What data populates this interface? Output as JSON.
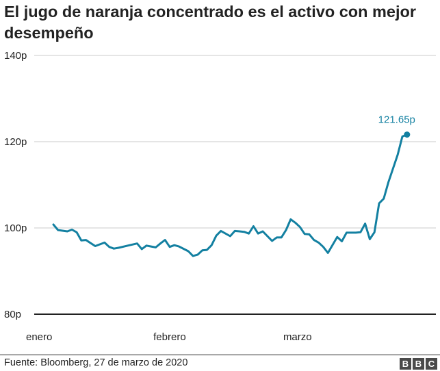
{
  "title": "El jugo de naranja concentrado es el activo con mejor desempeño",
  "source": "Fuente: Bloomberg, 27 de marzo de 2020",
  "logo_letters": [
    "B",
    "B",
    "C"
  ],
  "colors": {
    "line": "#1380a1",
    "grid": "#cbcbcb",
    "axis": "#222222"
  },
  "chart_data": {
    "type": "line",
    "title": "El jugo de naranja concentrado es el activo con mejor desempeño",
    "xlabel": "",
    "ylabel": "",
    "ylim": [
      80,
      140
    ],
    "yticks": [
      80,
      100,
      120,
      140
    ],
    "ytick_labels": [
      "80p",
      "100p",
      "120p",
      "140p"
    ],
    "xtick_labels": [
      {
        "label": "enero",
        "x": 0
      },
      {
        "label": "febrero",
        "x": 25.5
      },
      {
        "label": "marzo",
        "x": 51.5
      }
    ],
    "grid": true,
    "series": [
      {
        "name": "",
        "x": [
          1,
          2,
          4,
          5,
          6,
          7,
          8,
          9,
          10,
          12,
          13,
          14,
          15,
          17,
          19,
          20,
          21,
          22,
          23,
          24,
          25,
          26,
          27,
          28,
          30,
          31,
          32,
          33,
          34,
          35,
          36,
          37,
          39,
          40,
          41,
          42,
          43,
          44,
          45,
          46,
          47,
          48,
          49,
          50,
          51,
          52,
          53,
          54,
          55,
          56,
          57,
          58,
          59,
          60,
          62,
          63,
          64,
          66,
          67,
          68,
          69,
          70,
          71,
          72,
          73,
          75,
          76,
          77
        ],
        "values": [
          100.8,
          99.5,
          99.2,
          99.6,
          99.0,
          97.1,
          97.2,
          96.5,
          95.8,
          96.6,
          95.6,
          95.2,
          95.4,
          95.9,
          96.4,
          95.1,
          95.9,
          95.7,
          95.5,
          96.4,
          97.2,
          95.6,
          96.0,
          95.7,
          94.6,
          93.5,
          93.8,
          94.8,
          94.9,
          96.0,
          98.2,
          99.3,
          98.1,
          99.3,
          99.2,
          99.1,
          98.7,
          100.4,
          98.7,
          99.2,
          98.1,
          97.0,
          97.8,
          97.8,
          99.5,
          102.0,
          101.2,
          100.2,
          98.6,
          98.5,
          97.2,
          96.6,
          95.6,
          94.2,
          97.9,
          96.9,
          98.9,
          98.9,
          99.0,
          101.0,
          97.4,
          99.0,
          105.7,
          106.8,
          110.6,
          117.0,
          121.2,
          121.65
        ]
      }
    ],
    "annotations": [
      {
        "text": "121.65p",
        "x": 77,
        "y": 121.65
      }
    ]
  }
}
